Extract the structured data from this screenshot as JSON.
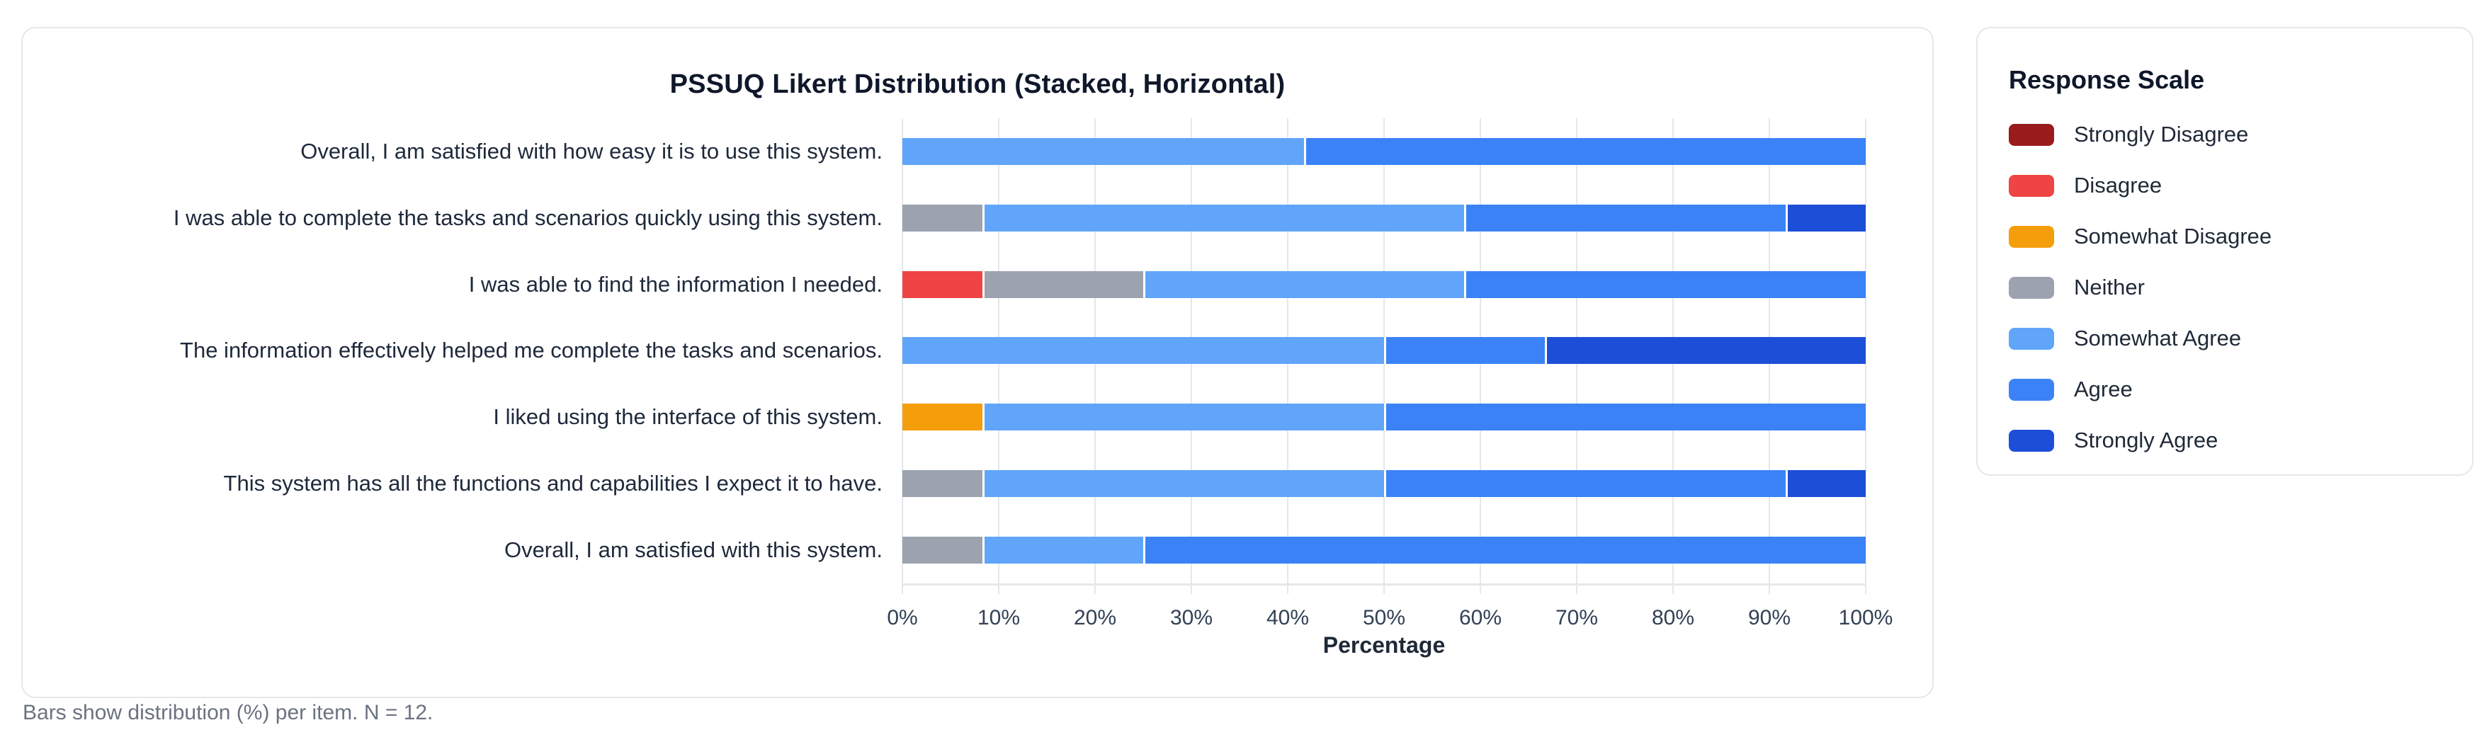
{
  "page": {
    "footer_note": "Bars show distribution (%) per item. N = 12."
  },
  "chart_card": {
    "title": "PSSUQ Likert Distribution (Stacked, Horizontal)",
    "xlabel": "Percentage"
  },
  "legend": {
    "title": "Response Scale",
    "items": [
      {
        "label": "Strongly Disagree",
        "color": "#991b1b"
      },
      {
        "label": "Disagree",
        "color": "#ef4444"
      },
      {
        "label": "Somewhat Disagree",
        "color": "#f59e0b"
      },
      {
        "label": "Neither",
        "color": "#9ca3af"
      },
      {
        "label": "Somewhat Agree",
        "color": "#60a5fa"
      },
      {
        "label": "Agree",
        "color": "#3b82f6"
      },
      {
        "label": "Strongly Agree",
        "color": "#1d4ed8"
      }
    ]
  },
  "chart_data": {
    "type": "bar",
    "orientation": "horizontal",
    "stacked": true,
    "title": "PSSUQ Likert Distribution (Stacked, Horizontal)",
    "xlabel": "Percentage",
    "ylabel": "",
    "xlim": [
      0,
      100
    ],
    "x_ticks": [
      "0%",
      "10%",
      "20%",
      "30%",
      "40%",
      "50%",
      "60%",
      "70%",
      "80%",
      "90%",
      "100%"
    ],
    "grid": true,
    "legend_position": "right-card",
    "n": 12,
    "note": "Bars show distribution (%) per item. N = 12.",
    "categories": [
      "Overall, I am satisfied with how easy it is to use this system.",
      "I was able to complete the tasks and scenarios quickly using this system.",
      "I was able to find the information I needed.",
      "The information effectively helped me complete the tasks and scenarios.",
      "I liked using the interface of this system.",
      "This system has all the functions and capabilities I expect it to have.",
      "Overall, I am satisfied with this system."
    ],
    "series": [
      {
        "name": "Strongly Disagree",
        "color": "#991b1b",
        "values": [
          0,
          0,
          0,
          0,
          0,
          0,
          0
        ]
      },
      {
        "name": "Disagree",
        "color": "#ef4444",
        "values": [
          0,
          0,
          8.33,
          0,
          0,
          0,
          0
        ]
      },
      {
        "name": "Somewhat Disagree",
        "color": "#f59e0b",
        "values": [
          0,
          0,
          0,
          0,
          8.33,
          0,
          0
        ]
      },
      {
        "name": "Neither",
        "color": "#9ca3af",
        "values": [
          0,
          8.33,
          16.67,
          0,
          0,
          8.33,
          8.33
        ]
      },
      {
        "name": "Somewhat Agree",
        "color": "#60a5fa",
        "values": [
          41.67,
          50,
          33.33,
          50,
          41.67,
          41.67,
          16.67
        ]
      },
      {
        "name": "Agree",
        "color": "#3b82f6",
        "values": [
          58.33,
          33.33,
          41.67,
          16.67,
          50,
          41.67,
          75
        ]
      },
      {
        "name": "Strongly Agree",
        "color": "#1d4ed8",
        "values": [
          0,
          8.33,
          0,
          33.33,
          0,
          8.33,
          0
        ]
      }
    ]
  }
}
